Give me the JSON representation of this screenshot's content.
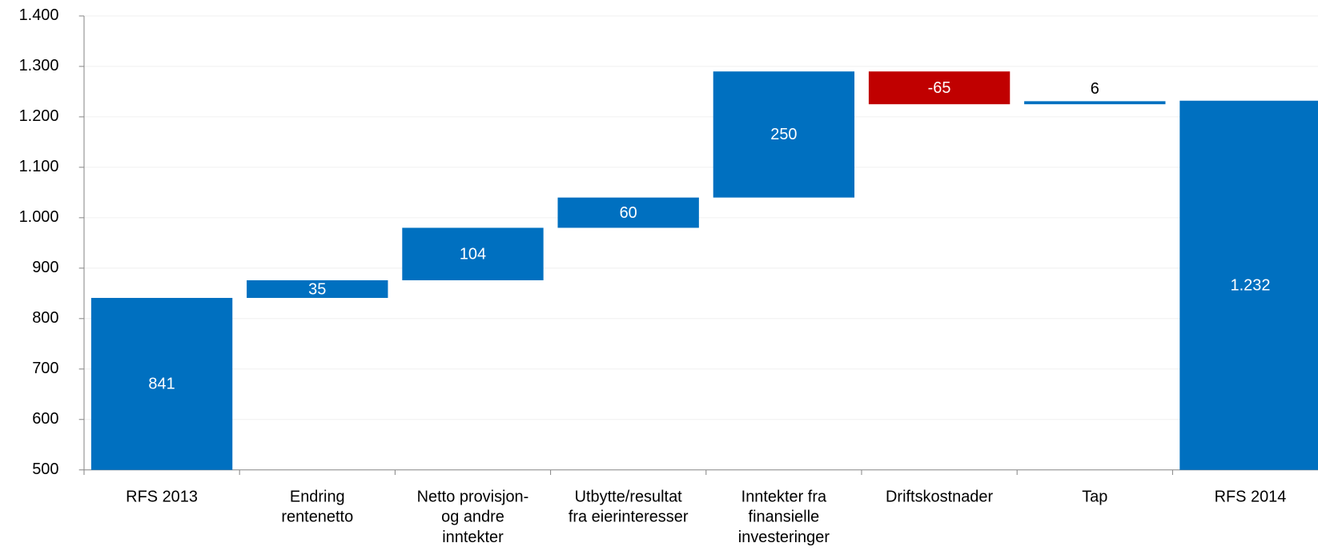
{
  "chart_data": {
    "type": "waterfall",
    "categories": [
      "RFS 2013",
      "Endring\nrentenetto",
      "Netto provisjon-\nog andre\ninntekter",
      "Utbytte/resultat\nfra eierinteresser",
      "Inntekter fra\nfinansielle\ninvesteringer",
      "Driftskostnader",
      "Tap",
      "RFS 2014"
    ],
    "values": [
      841,
      35,
      104,
      60,
      250,
      -65,
      6,
      1232
    ],
    "value_labels": [
      "841",
      "35",
      "104",
      "60",
      "250",
      "-65",
      "6",
      "1.232"
    ],
    "measure": [
      "absolute",
      "relative",
      "relative",
      "relative",
      "relative",
      "relative",
      "relative",
      "total"
    ],
    "increasing_color": "#0070c0",
    "decreasing_color": "#c00000",
    "total_color": "#0070c0",
    "ylim": [
      500,
      1400
    ],
    "yticks": [
      500,
      600,
      700,
      800,
      900,
      {
        "value": 1000,
        "label": "1.000"
      },
      {
        "value": 1100,
        "label": "1.100"
      },
      {
        "value": 1200,
        "label": "1.200"
      },
      {
        "value": 1300,
        "label": "1.300"
      },
      {
        "value": 1400,
        "label": "1.400"
      }
    ],
    "grid": true
  }
}
